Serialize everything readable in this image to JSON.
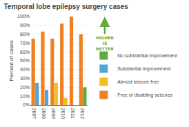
{
  "chart_data": {
    "type": "bar",
    "title": "Temporal lobe epilepsy surgery cases",
    "y_label": "Percent of cases",
    "categories": [
      "2007",
      "2008",
      "2009",
      "2010",
      "2011",
      "2012"
    ],
    "series": [
      {
        "name": "No substantial improvement",
        "color": "#5cad3c",
        "values": [
          null,
          null,
          null,
          null,
          null,
          20
        ]
      },
      {
        "name": "Substantial improvement",
        "color": "#4da6d4",
        "values": [
          25,
          17,
          null,
          null,
          null,
          null
        ]
      },
      {
        "name": "Almost seizure free",
        "color": "#f0c020",
        "values": [
          null,
          null,
          25,
          8,
          null,
          null
        ]
      },
      {
        "name": "Free of disabling seizures",
        "color": "#f08020",
        "values": [
          75,
          83,
          75,
          92,
          100,
          80
        ]
      }
    ],
    "ylim": [
      0,
      100
    ],
    "yticks": [
      {
        "value": 0,
        "label": "0%"
      },
      {
        "value": 10,
        "label": "10%"
      },
      {
        "value": 20,
        "label": "20%"
      },
      {
        "value": 30,
        "label": "30%"
      },
      {
        "value": 40,
        "label": "40%"
      },
      {
        "value": 50,
        "label": "50%"
      },
      {
        "value": 60,
        "label": "60%"
      },
      {
        "value": 70,
        "label": "70%"
      },
      {
        "value": 80,
        "label": "80%"
      },
      {
        "value": 90,
        "label": "90%"
      },
      {
        "value": 100,
        "label": "100%"
      }
    ],
    "grid": true,
    "legend": "right",
    "annotations": [
      {
        "text": "HIGHER\nIS\nBETTER",
        "color": "#5cad3c"
      }
    ]
  }
}
